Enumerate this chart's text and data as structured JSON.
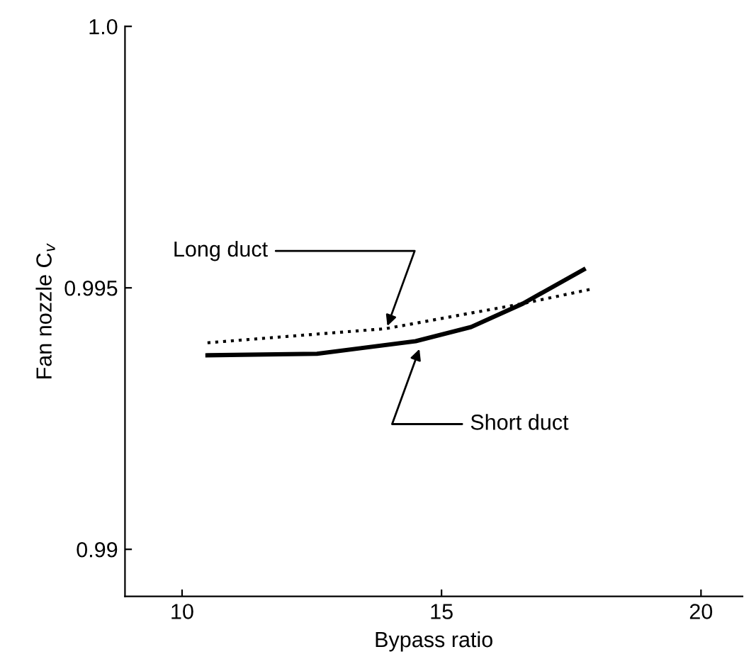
{
  "chart_data": {
    "type": "line",
    "xlabel": "Bypass ratio",
    "ylabel": "Fan nozzle C$_{v}$",
    "xlim": [
      8.9,
      20.8
    ],
    "ylim": [
      0.9891,
      1.0
    ],
    "xticks": [
      10,
      15,
      20
    ],
    "yticks": [
      0.99,
      0.995,
      {
        "value": 1.0,
        "label": "1.0"
      }
    ],
    "grid": false,
    "legend": false,
    "series": [
      {
        "color": "#000000",
        "line_style": "solid",
        "x": [
          10.49,
          12.6,
          14.5,
          15.57,
          16.57,
          17.74
        ],
        "values": [
          0.99371,
          0.99374,
          0.99398,
          0.99425,
          0.9947,
          0.99535
        ]
      },
      {
        "color": "#000000",
        "line_style": "dotted",
        "x": [
          10.49,
          13.93,
          16.57,
          17.86
        ],
        "values": [
          0.99395,
          0.99422,
          0.9947,
          0.99497
        ]
      }
    ],
    "annotations": [
      {
        "text": "Long duct",
        "x": 13.93,
        "y": 0.9942
      },
      {
        "text": "Short duct",
        "x": 14.6,
        "y": 0.9939
      }
    ]
  }
}
